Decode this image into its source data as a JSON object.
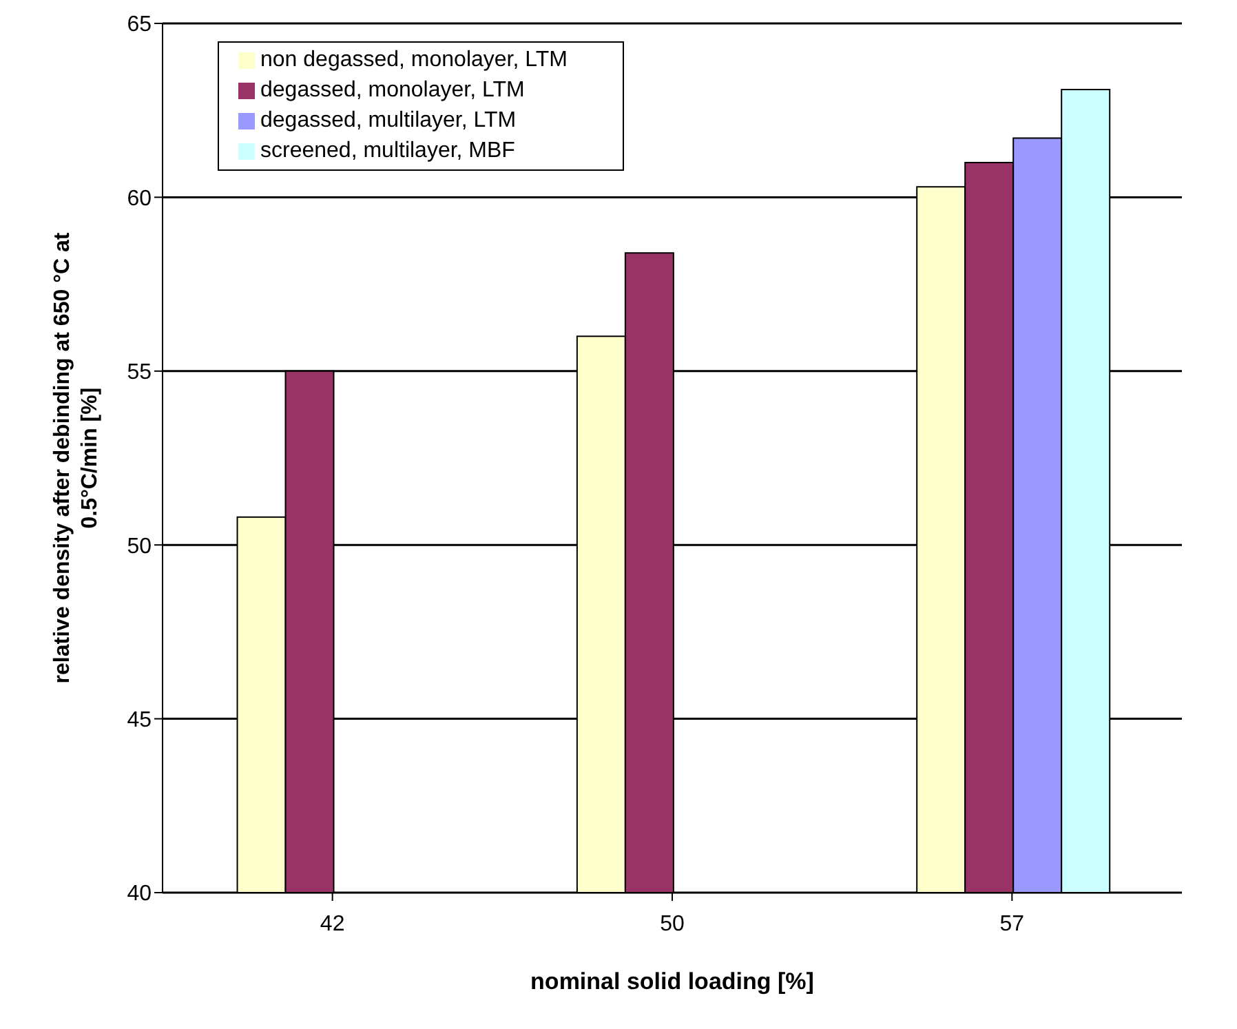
{
  "chart_data": {
    "type": "bar",
    "xlabel": "nominal solid loading [%]",
    "ylabel": "relative density after debinding at 650 °C at\n0.5°C/min  [%]",
    "categories": [
      "42",
      "50",
      "57"
    ],
    "series": [
      {
        "name": "non degassed, monolayer, LTM",
        "color": "#ffffcc",
        "values": [
          50.8,
          56.0,
          60.3
        ]
      },
      {
        "name": "degassed, monolayer, LTM",
        "color": "#993366",
        "values": [
          55.0,
          58.4,
          61.0
        ]
      },
      {
        "name": "degassed, multilayer, LTM",
        "color": "#9999ff",
        "values": [
          null,
          null,
          61.7
        ]
      },
      {
        "name": "screened, multilayer, MBF",
        "color": "#ccffff",
        "values": [
          null,
          null,
          63.1
        ]
      }
    ],
    "ylim": [
      40,
      65
    ],
    "yticks": [
      40,
      45,
      50,
      55,
      60,
      65
    ],
    "grid": "y",
    "legend": "top left"
  }
}
